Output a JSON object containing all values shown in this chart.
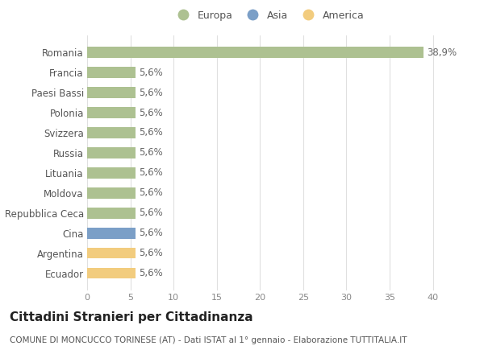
{
  "countries": [
    "Romania",
    "Francia",
    "Paesi Bassi",
    "Polonia",
    "Svizzera",
    "Russia",
    "Lituania",
    "Moldova",
    "Repubblica Ceca",
    "Cina",
    "Argentina",
    "Ecuador"
  ],
  "values": [
    38.9,
    5.6,
    5.6,
    5.6,
    5.6,
    5.6,
    5.6,
    5.6,
    5.6,
    5.6,
    5.6,
    5.6
  ],
  "labels": [
    "38,9%",
    "5,6%",
    "5,6%",
    "5,6%",
    "5,6%",
    "5,6%",
    "5,6%",
    "5,6%",
    "5,6%",
    "5,6%",
    "5,6%",
    "5,6%"
  ],
  "continents": [
    "Europa",
    "Europa",
    "Europa",
    "Europa",
    "Europa",
    "Europa",
    "Europa",
    "Europa",
    "Europa",
    "Asia",
    "America",
    "America"
  ],
  "colors": {
    "Europa": "#adc191",
    "Asia": "#7b9fc7",
    "America": "#f2cc7e"
  },
  "legend": [
    "Europa",
    "Asia",
    "America"
  ],
  "legend_colors": [
    "#adc191",
    "#7b9fc7",
    "#f2cc7e"
  ],
  "xlim": [
    0,
    42
  ],
  "xticks": [
    0,
    5,
    10,
    15,
    20,
    25,
    30,
    35,
    40
  ],
  "title": "Cittadini Stranieri per Cittadinanza",
  "subtitle": "COMUNE DI MONCUCCO TORINESE (AT) - Dati ISTAT al 1° gennaio - Elaborazione TUTTITALIA.IT",
  "background_color": "#ffffff",
  "grid_color": "#e0e0e0",
  "bar_height": 0.55,
  "label_fontsize": 8.5,
  "tick_fontsize": 8,
  "ytick_fontsize": 8.5,
  "title_fontsize": 11,
  "subtitle_fontsize": 7.5
}
